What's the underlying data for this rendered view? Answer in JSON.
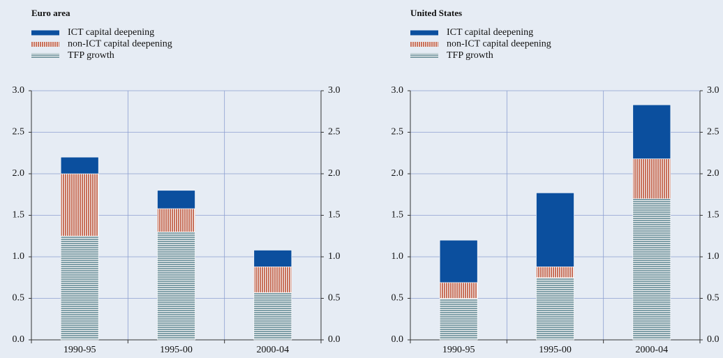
{
  "chart_data": [
    {
      "type": "bar",
      "stacked": true,
      "title": "Euro area",
      "categories": [
        "1990-95",
        "1995-00",
        "2000-04"
      ],
      "series": [
        {
          "name": "ICT capital deepening",
          "color": "#0b4f9e",
          "pattern": "solid",
          "values": [
            0.2,
            0.22,
            0.2
          ]
        },
        {
          "name": "non-ICT capital deepening",
          "color": "#c8705a",
          "pattern": "vertical",
          "values": [
            0.75,
            0.28,
            0.31
          ]
        },
        {
          "name": "TFP growth",
          "color": "#7f9fa8",
          "pattern": "horizontal",
          "values": [
            1.25,
            1.3,
            0.57
          ]
        }
      ],
      "ylim": [
        0,
        3
      ],
      "yticks": [
        {
          "value": 0,
          "label": "0.0"
        },
        {
          "value": 0.5,
          "label": "0.5"
        },
        {
          "value": 1,
          "label": "1.0"
        },
        {
          "value": 1.5,
          "label": "1.5"
        },
        {
          "value": 2,
          "label": "2.0"
        },
        {
          "value": 2.5,
          "label": "2.5"
        },
        {
          "value": 3,
          "label": "3.0"
        }
      ],
      "y2lim": [
        0,
        3
      ],
      "y2ticks": [
        {
          "value": 0,
          "label": "0.0"
        },
        {
          "value": 0.5,
          "label": "0.5"
        },
        {
          "value": 1,
          "label": "1.0"
        },
        {
          "value": 1.5,
          "label": "1.5"
        },
        {
          "value": 2,
          "label": "2.0"
        },
        {
          "value": 2.5,
          "label": "2.5"
        },
        {
          "value": 3,
          "label": "3.0"
        }
      ],
      "grid": true
    },
    {
      "type": "bar",
      "stacked": true,
      "title": "United States",
      "categories": [
        "1990-95",
        "1995-00",
        "2000-04"
      ],
      "series": [
        {
          "name": "ICT capital deepening",
          "color": "#0b4f9e",
          "pattern": "solid",
          "values": [
            0.51,
            0.89,
            0.65
          ]
        },
        {
          "name": "non-ICT capital deepening",
          "color": "#c8705a",
          "pattern": "vertical",
          "values": [
            0.19,
            0.13,
            0.48
          ]
        },
        {
          "name": "TFP growth",
          "color": "#7f9fa8",
          "pattern": "horizontal",
          "values": [
            0.5,
            0.75,
            1.7
          ]
        }
      ],
      "ylim": [
        0,
        3
      ],
      "yticks": [
        {
          "value": 0,
          "label": "0.0"
        },
        {
          "value": 0.5,
          "label": "0.5"
        },
        {
          "value": 1,
          "label": "1.0"
        },
        {
          "value": 1.5,
          "label": "1.5"
        },
        {
          "value": 2,
          "label": "2.0"
        },
        {
          "value": 2.5,
          "label": "2.5"
        },
        {
          "value": 3,
          "label": "3.0"
        }
      ],
      "y2lim": [
        0,
        3
      ],
      "y2ticks": [
        {
          "value": 0,
          "label": "0.0"
        },
        {
          "value": 0.5,
          "label": "0.5"
        },
        {
          "value": 1,
          "label": "1.0"
        },
        {
          "value": 1.5,
          "label": "1.5"
        },
        {
          "value": 2,
          "label": "2.0"
        },
        {
          "value": 2.5,
          "label": "2.5"
        },
        {
          "value": 3,
          "label": "3.0"
        }
      ],
      "grid": true
    }
  ]
}
